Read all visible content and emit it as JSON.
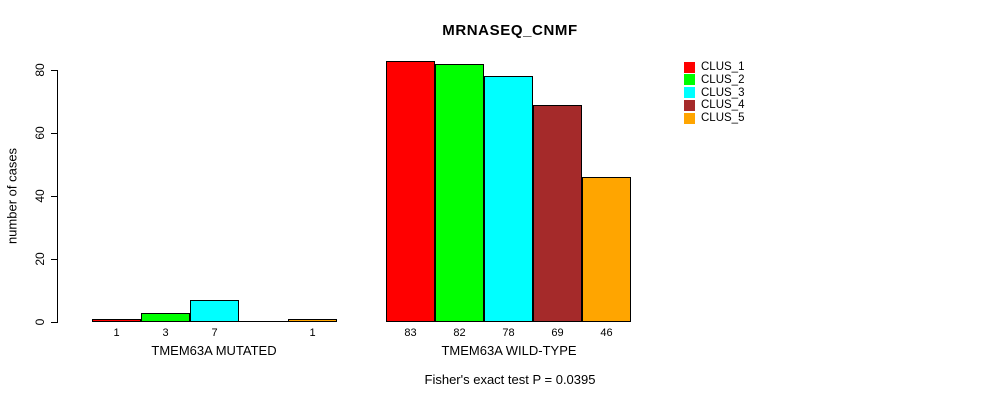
{
  "chart_data": {
    "type": "bar",
    "title": "MRNASEQ_CNMF",
    "ylabel": "number of cases",
    "xlabel": "",
    "ylim": [
      0,
      80
    ],
    "yticks": [
      0,
      20,
      40,
      60,
      80
    ],
    "grid": false,
    "legend_position": "topright",
    "groups": [
      {
        "label": "TMEM63A MUTATED",
        "values": [
          1,
          3,
          7,
          0,
          1
        ],
        "bar_labels": [
          "1",
          "3",
          "7",
          "",
          "1"
        ]
      },
      {
        "label": "TMEM63A WILD-TYPE",
        "values": [
          83,
          82,
          78,
          69,
          46
        ],
        "bar_labels": [
          "83",
          "82",
          "78",
          "69",
          "46"
        ]
      }
    ],
    "series": [
      {
        "name": "CLUS_1",
        "color": "#FF0000"
      },
      {
        "name": "CLUS_2",
        "color": "#00FF00"
      },
      {
        "name": "CLUS_3",
        "color": "#00FFFF"
      },
      {
        "name": "CLUS_4",
        "color": "#A52A2A"
      },
      {
        "name": "CLUS_5",
        "color": "#FFA500"
      }
    ],
    "annotation": "Fisher's exact test P = 0.0395"
  }
}
